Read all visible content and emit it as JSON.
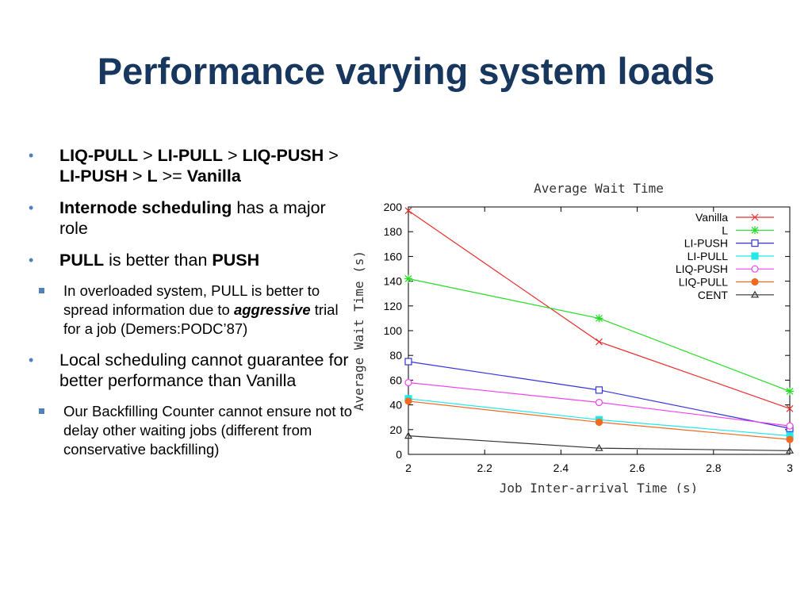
{
  "slide": {
    "title": "Performance varying system loads",
    "bullets": [
      {
        "parts": [
          {
            "t": "LIQ-PULL",
            "b": true
          },
          {
            "t": " > "
          },
          {
            "t": "LI-PULL",
            "b": true
          },
          {
            "t": " > "
          },
          {
            "t": "LIQ-PUSH",
            "b": true
          },
          {
            "t": " > "
          },
          {
            "t": "LI-PUSH",
            "b": true
          },
          {
            "t": " > "
          },
          {
            "t": "L",
            "b": true
          },
          {
            "t": " >= "
          },
          {
            "t": "Vanilla",
            "b": true
          }
        ]
      },
      {
        "parts": [
          {
            "t": "Internode scheduling",
            "b": true
          },
          {
            "t": " has a major role"
          }
        ]
      },
      {
        "parts": [
          {
            "t": "PULL",
            "b": true
          },
          {
            "t": " is better than "
          },
          {
            "t": "PUSH",
            "b": true
          }
        ],
        "sub": [
          {
            "parts": [
              {
                "t": "In overloaded system, PULL is better to spread information due to "
              },
              {
                "t": "aggressive",
                "b": true,
                "i": true
              },
              {
                "t": " trial for a job (Demers:PODC’87)"
              }
            ]
          }
        ]
      },
      {
        "parts": [
          {
            "t": "Local scheduling cannot guarantee for better performance  than Vanilla"
          }
        ],
        "sub": [
          {
            "parts": [
              {
                "t": "Our Backfilling Counter cannot ensure not to delay other waiting jobs (different from conservative backfilling)"
              }
            ]
          }
        ]
      }
    ]
  },
  "chart_data": {
    "type": "line",
    "title": "Average Wait Time",
    "xlabel": "Job Inter-arrival Time (s)",
    "ylabel": "Average Wait Time (s)",
    "xlim": [
      2,
      3
    ],
    "ylim": [
      0,
      200
    ],
    "xticks": [
      "2",
      "2.2",
      "2.4",
      "2.6",
      "2.8",
      "3"
    ],
    "yticks": [
      "0",
      "20",
      "40",
      "60",
      "80",
      "100",
      "120",
      "140",
      "160",
      "180",
      "200"
    ],
    "legend_position": "top-right",
    "x": [
      2,
      2.5,
      3
    ],
    "series": [
      {
        "name": "Vanilla",
        "values": [
          197,
          91,
          37
        ],
        "color": "#e8302e",
        "marker": "x"
      },
      {
        "name": "L",
        "values": [
          142,
          110,
          51
        ],
        "color": "#22dd22",
        "marker": "star"
      },
      {
        "name": "LI-PUSH",
        "values": [
          75,
          52,
          21
        ],
        "color": "#3333dd",
        "marker": "square-open"
      },
      {
        "name": "LI-PULL",
        "values": [
          45,
          28,
          15
        ],
        "color": "#22e8e8",
        "marker": "square-filled"
      },
      {
        "name": "LIQ-PUSH",
        "values": [
          58,
          42,
          23
        ],
        "color": "#ee44ee",
        "marker": "circle-open"
      },
      {
        "name": "LIQ-PULL",
        "values": [
          43,
          26,
          12
        ],
        "color": "#f06a22",
        "marker": "circle-filled"
      },
      {
        "name": "CENT",
        "values": [
          15,
          5,
          3
        ],
        "color": "#333333",
        "marker": "triangle-open"
      }
    ]
  }
}
